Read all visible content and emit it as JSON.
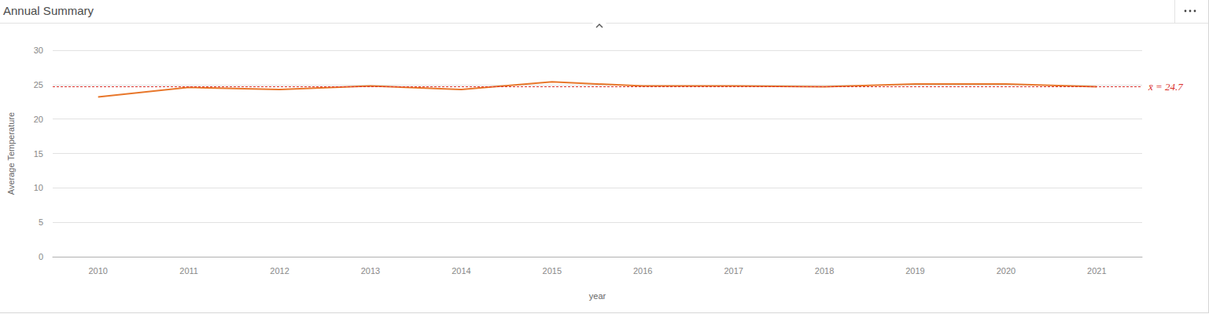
{
  "chart_data": {
    "type": "line",
    "title": "Annual Summary",
    "x_label": "year",
    "y_label": "Average Temperature",
    "categories": [
      "2010",
      "2011",
      "2012",
      "2013",
      "2014",
      "2015",
      "2016",
      "2017",
      "2018",
      "2019",
      "2020",
      "2021"
    ],
    "values": [
      23.2,
      24.6,
      24.3,
      24.8,
      24.3,
      25.4,
      24.8,
      24.8,
      24.7,
      25.1,
      25.1,
      24.7
    ],
    "color": "#e8772b",
    "ylim": [
      0,
      30
    ],
    "yticks": [
      0,
      5,
      10,
      15,
      20,
      25,
      30
    ],
    "grid": true,
    "annotations": [
      {
        "text": "x̄ = 24.7",
        "y": 24.7,
        "color": "#d9302b"
      }
    ]
  }
}
